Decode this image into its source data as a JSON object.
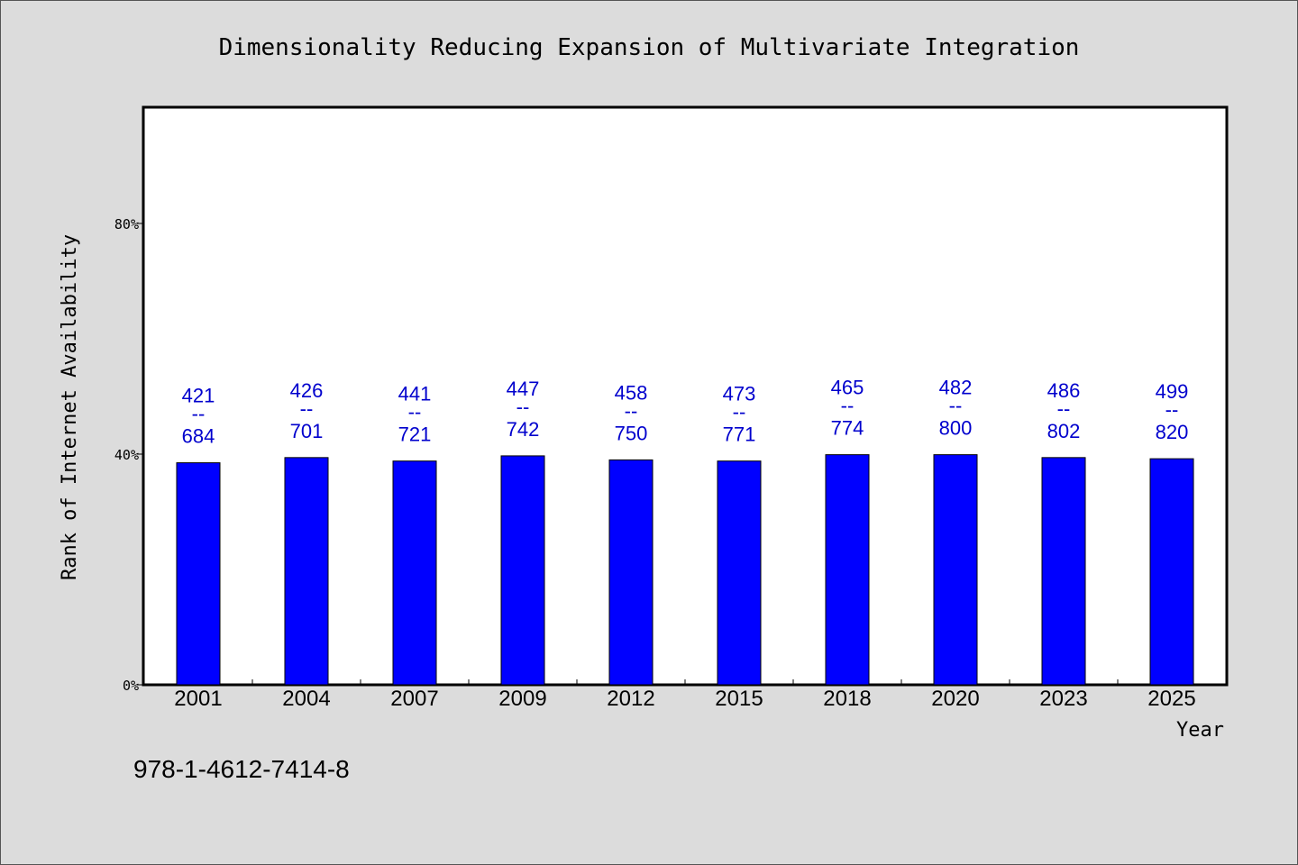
{
  "chart_data": {
    "type": "bar",
    "title": "Dimensionality Reducing Expansion of Multivariate Integration",
    "xlabel": "Year",
    "ylabel": "Rank of Internet Availability",
    "ylim": [
      0,
      100
    ],
    "yticks": [
      {
        "value": 0,
        "label": "0%"
      },
      {
        "value": 40,
        "label": "40%"
      },
      {
        "value": 80,
        "label": "80%"
      }
    ],
    "categories": [
      "2001",
      "2004",
      "2007",
      "2009",
      "2012",
      "2015",
      "2018",
      "2020",
      "2023",
      "2025"
    ],
    "values": [
      38.5,
      39.4,
      38.8,
      39.7,
      39.0,
      38.8,
      39.9,
      39.9,
      39.4,
      39.2
    ],
    "data_labels": [
      {
        "top": "421",
        "sep": "--",
        "bottom": "684"
      },
      {
        "top": "426",
        "sep": "--",
        "bottom": "701"
      },
      {
        "top": "441",
        "sep": "--",
        "bottom": "721"
      },
      {
        "top": "447",
        "sep": "--",
        "bottom": "742"
      },
      {
        "top": "458",
        "sep": "--",
        "bottom": "750"
      },
      {
        "top": "473",
        "sep": "--",
        "bottom": "771"
      },
      {
        "top": "465",
        "sep": "--",
        "bottom": "774"
      },
      {
        "top": "482",
        "sep": "--",
        "bottom": "800"
      },
      {
        "top": "486",
        "sep": "--",
        "bottom": "802"
      },
      {
        "top": "499",
        "sep": "--",
        "bottom": "820"
      }
    ],
    "bar_color": "#0000ff",
    "label_color": "#0000cd",
    "grid": false,
    "legend": "none"
  },
  "footer": {
    "isbn": "978-1-4612-7414-8"
  }
}
